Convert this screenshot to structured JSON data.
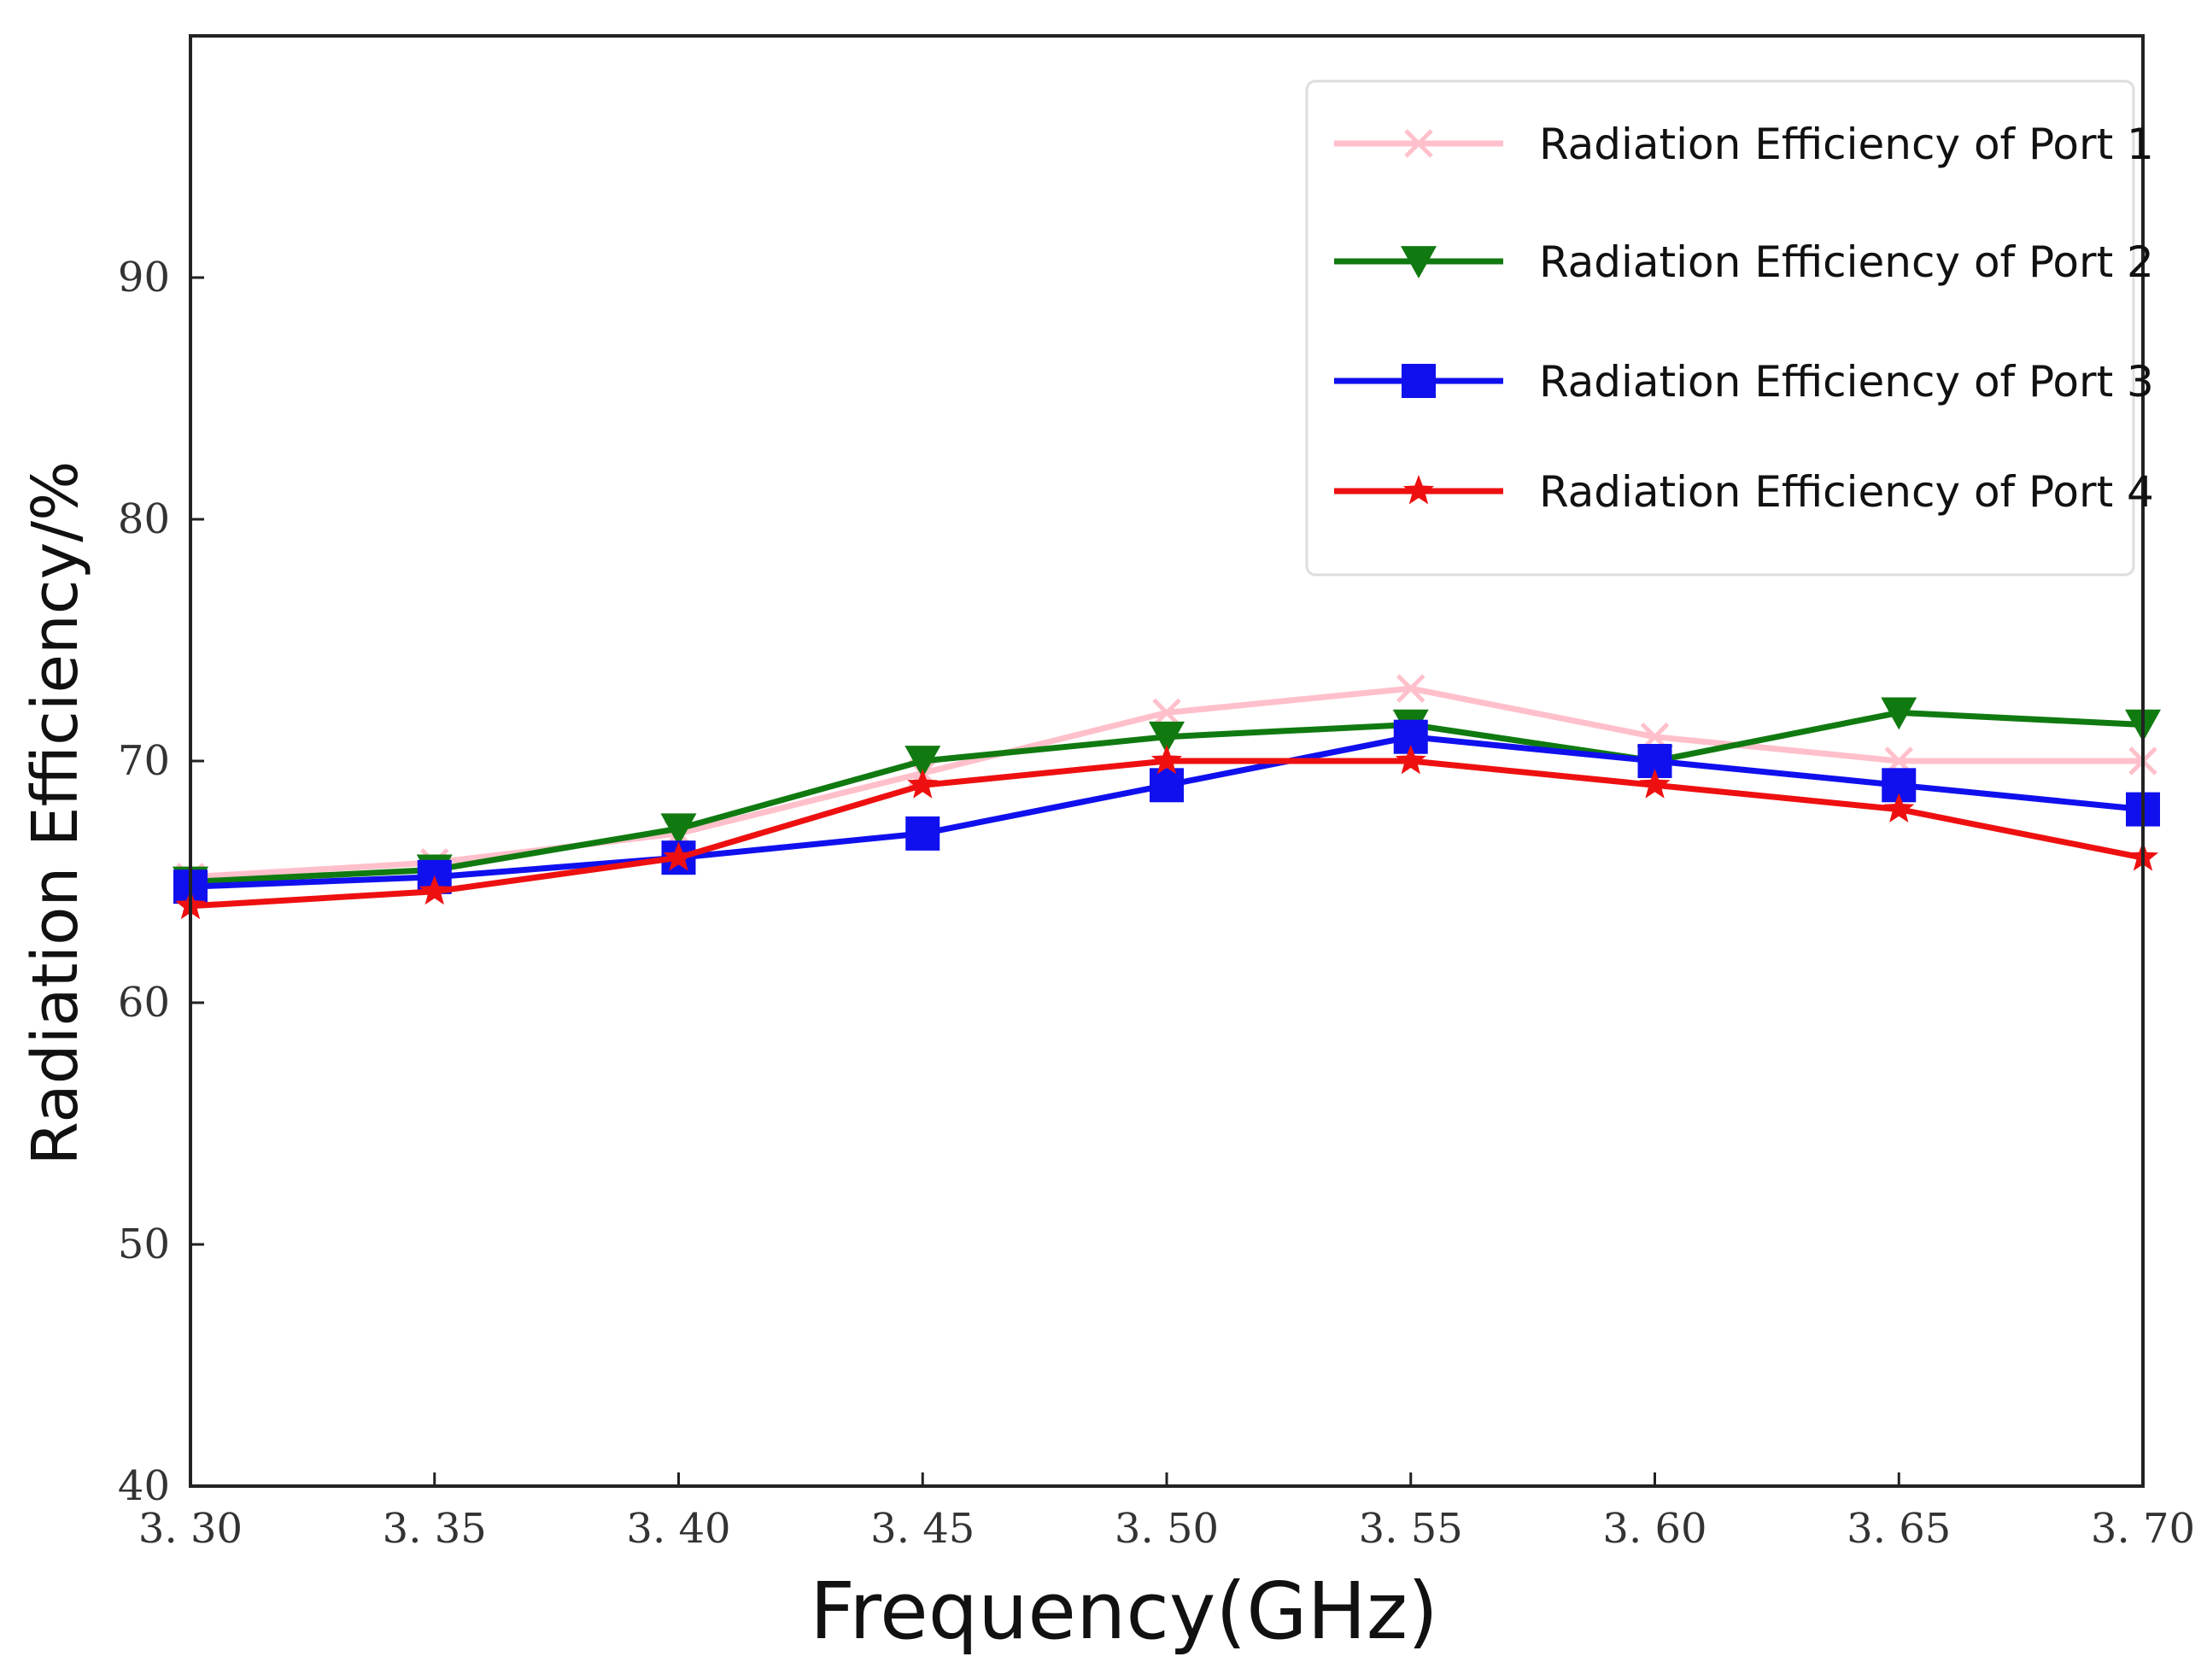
{
  "chart_data": {
    "type": "line",
    "title": "",
    "xlabel": "Frequency(GHz)",
    "ylabel": "Radiation Efficiency/%",
    "x": [
      3.3,
      3.35,
      3.4,
      3.45,
      3.5,
      3.55,
      3.6,
      3.65,
      3.7
    ],
    "x_tick_labels": [
      "3. 30",
      "3. 35",
      "3. 40",
      "3. 45",
      "3. 50",
      "3. 55",
      "3. 60",
      "3. 65",
      "3. 70"
    ],
    "xlim": [
      3.3,
      3.7
    ],
    "ylim": [
      40,
      100
    ],
    "y_ticks": [
      40,
      50,
      60,
      70,
      80,
      90
    ],
    "y_tick_labels": [
      "40",
      "50",
      "60",
      "70",
      "80",
      "90"
    ],
    "grid": false,
    "legend_position": "top-right",
    "series": [
      {
        "name": "Radiation Efficiency of Port 1",
        "color": "#ffc0cb",
        "marker": "x",
        "values": [
          65.2,
          65.8,
          67.0,
          69.5,
          72.0,
          73.0,
          71.0,
          70.0,
          70.0
        ]
      },
      {
        "name": "Radiation Efficiency of Port 2",
        "color": "#107a10",
        "marker": "triangle-down",
        "values": [
          65.0,
          65.5,
          67.2,
          70.0,
          71.0,
          71.5,
          70.0,
          72.0,
          71.5
        ]
      },
      {
        "name": "Radiation Efficiency of Port 3",
        "color": "#1010ee",
        "marker": "square",
        "values": [
          64.8,
          65.2,
          66.0,
          67.0,
          69.0,
          71.0,
          70.0,
          69.0,
          68.0
        ]
      },
      {
        "name": "Radiation Efficiency of Port 4",
        "color": "#ee1010",
        "marker": "star",
        "values": [
          64.0,
          64.6,
          66.0,
          69.0,
          70.0,
          70.0,
          69.0,
          68.0,
          66.0
        ]
      }
    ]
  }
}
